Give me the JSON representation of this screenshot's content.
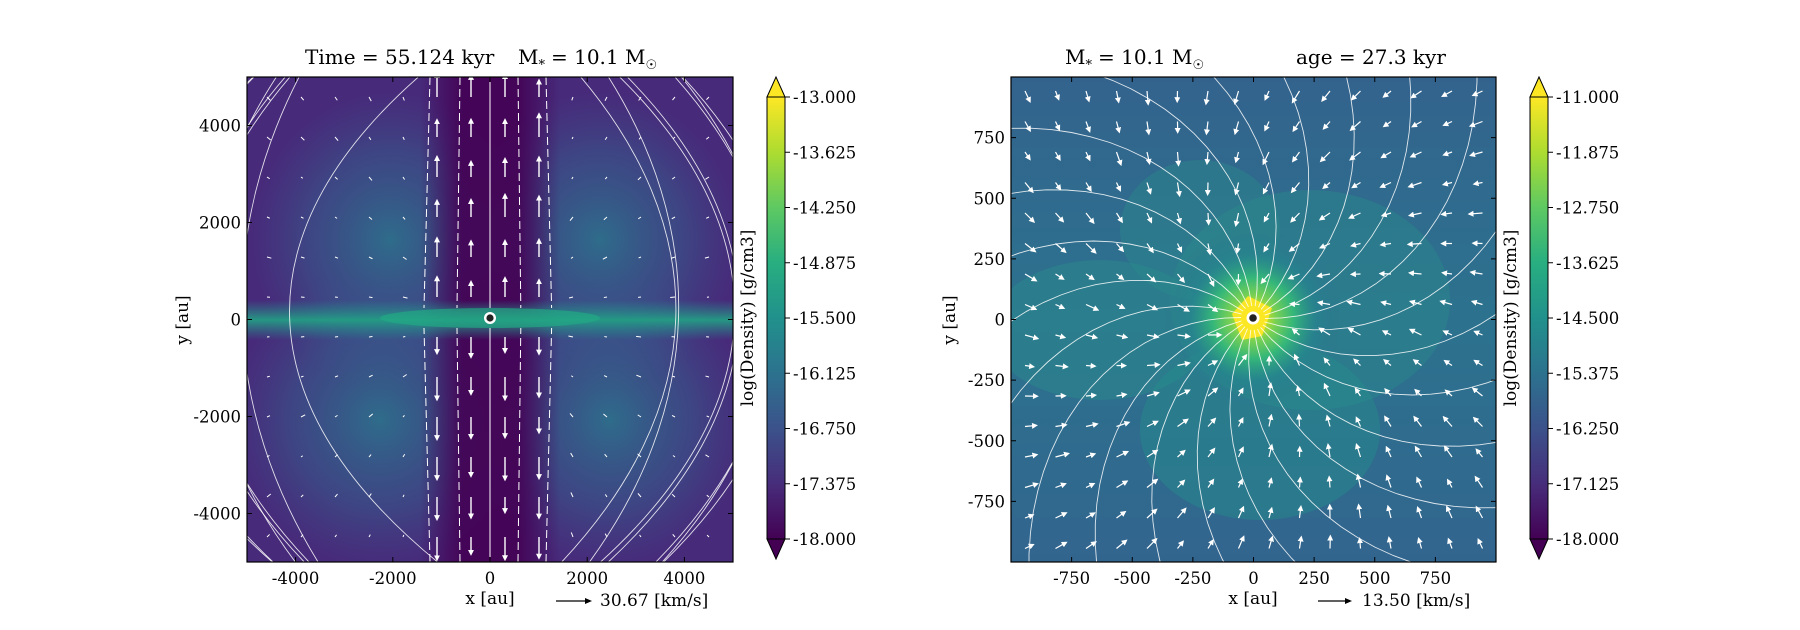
{
  "chart_data": [
    {
      "type": "heatmap",
      "panel": "left",
      "title_segments": [
        "Time = 55.124 kyr",
        "M",
        "*",
        "= 10.1 M",
        "☉"
      ],
      "xlabel": "x [au]",
      "ylabel": "y [au]",
      "xlim": [
        -5000,
        5000
      ],
      "ylim": [
        -5000,
        5000
      ],
      "xticks": [
        -4000,
        -2000,
        0,
        2000,
        4000
      ],
      "xtick_labels": [
        "-4000",
        "-2000",
        "0",
        "2000",
        "4000"
      ],
      "yticks": [
        -4000,
        -2000,
        0,
        2000,
        4000
      ],
      "ytick_labels": [
        "-4000",
        "-2000",
        "0",
        "2000",
        "4000"
      ],
      "colorbar": {
        "label": "log(Density) [g/cm3]",
        "range": [
          -18.0,
          -13.0
        ],
        "ticks": [
          -13.0,
          -13.625,
          -14.25,
          -14.875,
          -15.5,
          -16.125,
          -16.75,
          -17.375,
          -18.0
        ],
        "tick_labels": [
          "-13.000",
          "-13.625",
          "-14.250",
          "-14.875",
          "-15.500",
          "-16.125",
          "-16.750",
          "-17.375",
          "-18.000"
        ],
        "colormap": "viridis",
        "extend": "both"
      },
      "quiver_key": "30.67 [km/s]",
      "overlays": [
        "velocity streamlines (white)",
        "velocity arrows (white)",
        "sink particle at origin"
      ],
      "structure": "bipolar low-density outflow cavity along y-axis; dense equatorial disk/filament along y = 0",
      "sink": {
        "x": 0,
        "y": 0
      }
    },
    {
      "type": "heatmap",
      "panel": "right",
      "title_segments": [
        "M",
        "*",
        "= 10.1 M",
        "☉",
        "age = 27.3 kyr"
      ],
      "xlabel": "x [au]",
      "ylabel": "y [au]",
      "xlim": [
        -1000,
        1000
      ],
      "ylim": [
        -1000,
        1000
      ],
      "xticks": [
        -750,
        -500,
        -250,
        0,
        250,
        500,
        750
      ],
      "xtick_labels": [
        "-750",
        "-500",
        "-250",
        "0",
        "250",
        "500",
        "750"
      ],
      "yticks": [
        -750,
        -500,
        -250,
        0,
        250,
        500,
        750
      ],
      "ytick_labels": [
        "-750",
        "-500",
        "-250",
        "0",
        "250",
        "500",
        "750"
      ],
      "colorbar": {
        "label": "log(Density) [g/cm3]",
        "range": [
          -18.0,
          -11.0
        ],
        "ticks": [
          -11.0,
          -11.875,
          -12.75,
          -13.625,
          -14.5,
          -15.375,
          -16.25,
          -17.125,
          -18.0
        ],
        "tick_labels": [
          "-11.000",
          "-11.875",
          "-12.750",
          "-13.625",
          "-14.500",
          "-15.375",
          "-16.250",
          "-17.125",
          "-18.000"
        ],
        "colormap": "viridis",
        "extend": "both"
      },
      "quiver_key": "13.50 [km/s]",
      "overlays": [
        "velocity streamlines (white)",
        "velocity arrows (white)",
        "sink particle at origin"
      ],
      "structure": "infall toward central dense core; bright density peak at origin",
      "sink": {
        "x": 0,
        "y": 0
      }
    }
  ]
}
